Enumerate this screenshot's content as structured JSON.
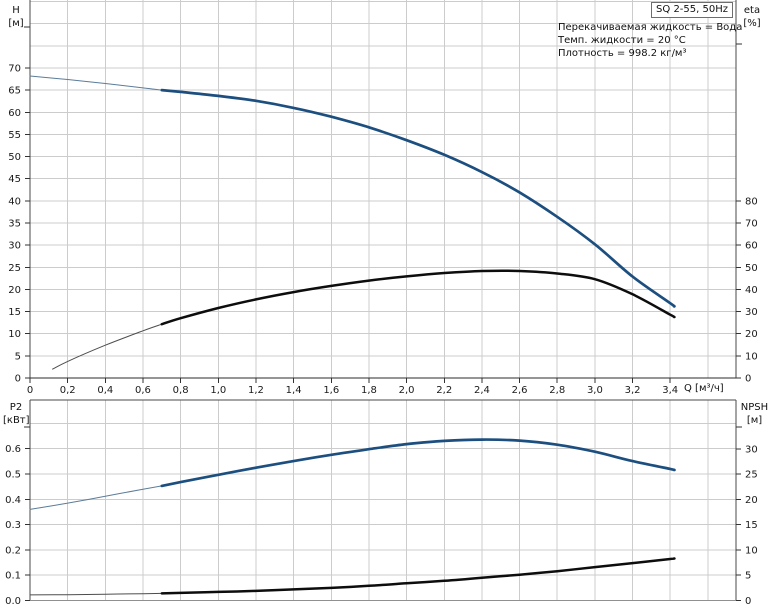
{
  "title_box": {
    "label": "SQ 2-55, 50Hz"
  },
  "info": {
    "lines": [
      "Перекачиваемая жидкость = Вода",
      "Темп. жидкости = 20 °C",
      "Плотность = 998.2 кг/м³"
    ]
  },
  "colors": {
    "curve_blue": "#1c4f7f",
    "curve_blue_thin": "#5b7c99",
    "curve_black": "#0d0d0d",
    "curve_black_thin": "#4d4d4d",
    "grid": "#cccccc",
    "border": "#4a4a4a",
    "axis_dark": "#2b2b2b",
    "axis_gray": "#909090",
    "tick": "#333333",
    "text": "#1a1a1a"
  },
  "chart_data": [
    {
      "type": "line",
      "title": "SQ 2-55, 50Hz",
      "x_label": "Q [м³/ч]",
      "x_range": [
        0,
        3.75
      ],
      "x_ticks": {
        "values": [
          0,
          0.2,
          0.4,
          0.6,
          0.8,
          1.0,
          1.2,
          1.4,
          1.6,
          1.8,
          2.0,
          2.2,
          2.4,
          2.6,
          2.8,
          3.0,
          3.2,
          3.4
        ],
        "labels": [
          "0",
          "0,2",
          "0,4",
          "0,6",
          "0,8",
          "1,0",
          "1,2",
          "1,4",
          "1,6",
          "1,8",
          "2,0",
          "2,2",
          "2,4",
          "2,6",
          "2,8",
          "3,0",
          "3,2",
          "3,4"
        ]
      },
      "x_grid": [
        0.2,
        0.4,
        0.6,
        0.8,
        1.0,
        1.2,
        1.4,
        1.6,
        1.8,
        2.0,
        2.2,
        2.4,
        2.6,
        2.8,
        3.0,
        3.2,
        3.4,
        3.6
      ],
      "left_axis": {
        "label": "H",
        "unit": "[м]",
        "range": [
          0,
          70
        ],
        "ticks": {
          "values": [
            0,
            5,
            10,
            15,
            20,
            25,
            30,
            35,
            40,
            45,
            50,
            55,
            60,
            65,
            70
          ],
          "labels": [
            "0",
            "5",
            "10",
            "15",
            "20",
            "25",
            "30",
            "35",
            "40",
            "45",
            "50",
            "55",
            "60",
            "65",
            "70"
          ]
        },
        "grid": [
          5,
          10,
          15,
          20,
          25,
          30,
          35,
          40,
          45,
          50,
          55,
          60,
          65,
          70,
          75,
          80,
          85
        ]
      },
      "right_axis": {
        "label": "eta",
        "unit": "[%]",
        "range": [
          0,
          80
        ],
        "ticks": {
          "values": [
            0,
            10,
            20,
            30,
            40,
            50,
            60,
            70,
            80
          ],
          "labels": [
            "0",
            "10",
            "20",
            "30",
            "40",
            "50",
            "60",
            "70",
            "80"
          ]
        }
      },
      "series": [
        {
          "name": "H",
          "axis": "left",
          "style": "blue",
          "thick_from": 0.7,
          "x": [
            0,
            0.2,
            0.4,
            0.6,
            0.7,
            0.8,
            1.0,
            1.2,
            1.4,
            1.6,
            1.8,
            2.0,
            2.2,
            2.4,
            2.6,
            2.8,
            3.0,
            3.2,
            3.4,
            3.42
          ],
          "y": [
            68.2,
            67.4,
            66.5,
            65.5,
            65.0,
            64.6,
            63.7,
            62.6,
            61.0,
            59.0,
            56.6,
            53.7,
            50.4,
            46.5,
            41.9,
            36.4,
            30.2,
            22.9,
            16.9,
            16.2
          ]
        },
        {
          "name": "eta",
          "axis": "right",
          "style": "black",
          "thick_from": 0.7,
          "x": [
            0.12,
            0.2,
            0.4,
            0.6,
            0.7,
            0.8,
            1.0,
            1.2,
            1.4,
            1.6,
            1.8,
            2.0,
            2.2,
            2.4,
            2.6,
            2.8,
            3.0,
            3.2,
            3.4,
            3.42
          ],
          "y": [
            4,
            7.5,
            14.8,
            21.3,
            24.3,
            27.0,
            31.6,
            35.5,
            38.8,
            41.6,
            44.0,
            45.9,
            47.4,
            48.3,
            48.3,
            47.2,
            44.6,
            37.8,
            28.6,
            27.6
          ]
        }
      ]
    },
    {
      "type": "line",
      "x_label": "",
      "x_range": [
        0,
        3.75
      ],
      "x_grid": [
        0.2,
        0.4,
        0.6,
        0.8,
        1.0,
        1.2,
        1.4,
        1.6,
        1.8,
        2.0,
        2.2,
        2.4,
        2.6,
        2.8,
        3.0,
        3.2,
        3.4,
        3.6
      ],
      "left_axis": {
        "label": "P2",
        "unit": "[кВт]",
        "range": [
          0,
          0.6
        ],
        "ticks": {
          "values": [
            0,
            0.1,
            0.2,
            0.3,
            0.4,
            0.5,
            0.6
          ],
          "labels": [
            "0.0",
            "0.1",
            "0.2",
            "0.3",
            "0.4",
            "0.5",
            "0.6"
          ]
        },
        "grid": [
          0.1,
          0.2,
          0.3,
          0.4,
          0.5,
          0.6,
          0.7
        ]
      },
      "right_axis": {
        "label": "NPSH",
        "unit": "[м]",
        "range": [
          0,
          30
        ],
        "ticks": {
          "values": [
            0,
            5,
            10,
            15,
            20,
            25,
            30
          ],
          "labels": [
            "0",
            "5",
            "10",
            "15",
            "20",
            "25",
            "30"
          ]
        }
      },
      "series": [
        {
          "name": "P2",
          "axis": "left",
          "style": "blue",
          "thick_from": 0.7,
          "x": [
            0,
            0.2,
            0.4,
            0.6,
            0.7,
            0.8,
            1.0,
            1.2,
            1.4,
            1.6,
            1.8,
            2.0,
            2.2,
            2.4,
            2.6,
            2.8,
            3.0,
            3.2,
            3.4,
            3.42
          ],
          "y": [
            0.36,
            0.385,
            0.412,
            0.44,
            0.453,
            0.468,
            0.497,
            0.525,
            0.551,
            0.576,
            0.598,
            0.618,
            0.631,
            0.636,
            0.632,
            0.616,
            0.588,
            0.551,
            0.52,
            0.516
          ]
        },
        {
          "name": "NPSH",
          "axis": "right",
          "style": "black",
          "thick_from": 0.7,
          "x": [
            0,
            0.2,
            0.4,
            0.6,
            0.7,
            0.8,
            1.0,
            1.2,
            1.4,
            1.6,
            1.8,
            2.0,
            2.2,
            2.4,
            2.6,
            2.8,
            3.0,
            3.2,
            3.4,
            3.42
          ],
          "y": [
            1.1,
            1.15,
            1.25,
            1.35,
            1.4,
            1.5,
            1.7,
            1.9,
            2.2,
            2.5,
            2.9,
            3.4,
            3.9,
            4.5,
            5.1,
            5.8,
            6.6,
            7.4,
            8.2,
            8.3
          ]
        }
      ]
    }
  ]
}
